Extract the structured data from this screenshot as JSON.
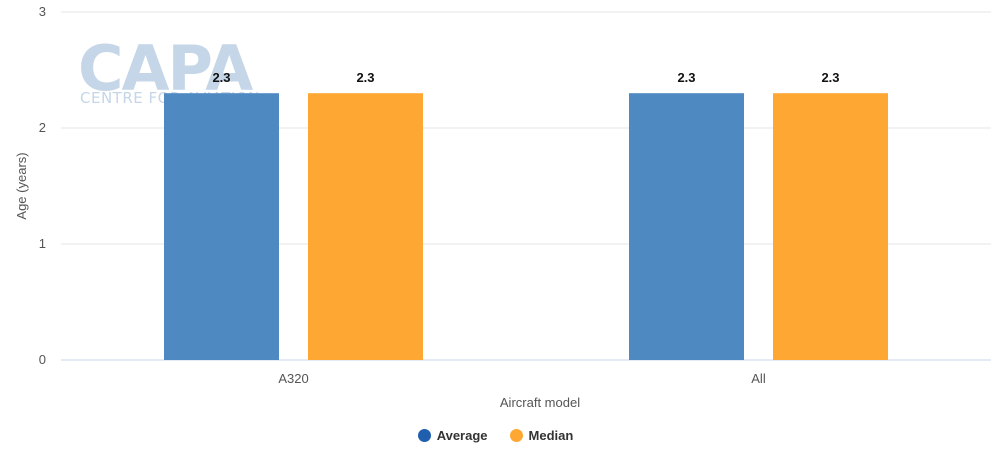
{
  "chart_data": {
    "type": "bar",
    "categories": [
      "A320",
      "All"
    ],
    "series": [
      {
        "name": "Average",
        "values": [
          2.3,
          2.3
        ],
        "color": "#4f89c2"
      },
      {
        "name": "Median",
        "values": [
          2.3,
          2.3
        ],
        "color": "#ffa733"
      }
    ],
    "data_labels": [
      "2.3",
      "2.3",
      "2.3",
      "2.3"
    ],
    "xlabel": "Aircraft model",
    "ylabel": "Age (years)",
    "ylim": [
      0,
      3
    ],
    "yticks": [
      "0",
      "1",
      "2",
      "3"
    ],
    "grid": true,
    "legend": "bottom-center"
  },
  "watermark": {
    "brand": "CAPA",
    "tagline": "CENTRE FOR AVIATION"
  },
  "legend": {
    "items": [
      {
        "label": "Average",
        "color": "#1f5fae"
      },
      {
        "label": "Median",
        "color": "#ffa733"
      }
    ]
  }
}
